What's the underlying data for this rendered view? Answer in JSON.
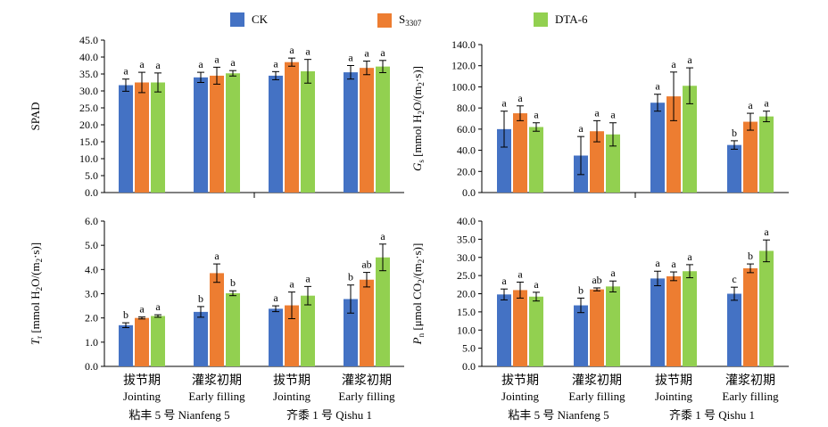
{
  "legend": [
    {
      "name": "CK",
      "color": "#4472C4"
    },
    {
      "name": "S3307",
      "color": "#ED7D31"
    },
    {
      "name": "DTA-6",
      "color": "#92D050"
    }
  ],
  "group_labels": [
    {
      "cn": "拔节期",
      "en": "Jointing"
    },
    {
      "cn": "灌浆初期",
      "en": "Early filling"
    },
    {
      "cn": "拔节期",
      "en": "Jointing"
    },
    {
      "cn": "灌浆初期",
      "en": "Early filling"
    }
  ],
  "varieties": [
    "粘丰 5 号 Nianfeng 5",
    "齐黍 1 号 Qishu 1"
  ],
  "chart_data": [
    {
      "type": "bar",
      "id": "spad",
      "ylabel": "SPAD",
      "ylim": [
        0,
        45
      ],
      "ytick_step": 5,
      "ytick_decimals": 1,
      "categories": [
        "Jointing",
        "Early filling",
        "Jointing",
        "Early filling"
      ],
      "series": [
        {
          "name": "CK",
          "values": [
            31.7,
            34.0,
            34.5,
            35.5
          ],
          "errors": [
            1.8,
            1.5,
            1.2,
            2.0
          ],
          "letters": [
            "a",
            "a",
            "a",
            "a"
          ]
        },
        {
          "name": "S3307",
          "values": [
            32.5,
            34.5,
            38.5,
            36.8
          ],
          "errors": [
            3.0,
            2.5,
            1.2,
            2.0
          ],
          "letters": [
            "a",
            "a",
            "a",
            "a"
          ]
        },
        {
          "name": "DTA-6",
          "values": [
            32.5,
            35.2,
            35.8,
            37.2
          ],
          "errors": [
            2.8,
            0.8,
            3.5,
            1.8
          ],
          "letters": [
            "a",
            "a",
            "a",
            "a"
          ]
        }
      ]
    },
    {
      "type": "bar",
      "id": "gs",
      "ylabel_parts": [
        "G",
        "s",
        " [mmol H",
        "2",
        "O/(m",
        "2",
        "·s)]"
      ],
      "ylim": [
        0,
        140
      ],
      "ytick_step": 20,
      "ytick_decimals": 1,
      "categories": [
        "Jointing",
        "Early filling",
        "Jointing",
        "Early filling"
      ],
      "series": [
        {
          "name": "CK",
          "values": [
            60,
            35,
            85,
            45
          ],
          "errors": [
            17,
            18,
            8,
            4
          ],
          "letters": [
            "a",
            "a",
            "a",
            "b"
          ]
        },
        {
          "name": "S3307",
          "values": [
            75,
            58,
            91,
            67
          ],
          "errors": [
            7,
            10,
            23,
            8
          ],
          "letters": [
            "a",
            "a",
            "a",
            "a"
          ]
        },
        {
          "name": "DTA-6",
          "values": [
            62,
            55,
            101,
            72
          ],
          "errors": [
            4,
            11,
            17,
            5
          ],
          "letters": [
            "a",
            "a",
            "a",
            "a"
          ]
        }
      ]
    },
    {
      "type": "bar",
      "id": "tr",
      "ylabel_parts": [
        "T",
        "r",
        " [mmol H",
        "2",
        "O/(m",
        "2",
        "·s)]"
      ],
      "ylim": [
        0,
        6
      ],
      "ytick_step": 1,
      "ytick_decimals": 1,
      "categories": [
        "Jointing",
        "Early filling",
        "Jointing",
        "Early filling"
      ],
      "series": [
        {
          "name": "CK",
          "values": [
            1.7,
            2.25,
            2.38,
            2.78
          ],
          "errors": [
            0.1,
            0.22,
            0.12,
            0.58
          ],
          "letters": [
            "b",
            "b",
            "a",
            "b"
          ]
        },
        {
          "name": "S3307",
          "values": [
            2.0,
            3.85,
            2.52,
            3.58
          ],
          "errors": [
            0.04,
            0.38,
            0.55,
            0.3
          ],
          "letters": [
            "a",
            "a",
            "a",
            "ab"
          ]
        },
        {
          "name": "DTA-6",
          "values": [
            2.08,
            3.02,
            2.92,
            4.5
          ],
          "errors": [
            0.05,
            0.1,
            0.38,
            0.55
          ],
          "letters": [
            "a",
            "b",
            "a",
            "a"
          ]
        }
      ]
    },
    {
      "type": "bar",
      "id": "pn",
      "ylabel_parts": [
        "P",
        "n",
        " [μmol CO",
        "2",
        "/(m",
        "2",
        "·s)]"
      ],
      "ylim": [
        0,
        40
      ],
      "ytick_step": 5,
      "ytick_decimals": 1,
      "categories": [
        "Jointing",
        "Early filling",
        "Jointing",
        "Early filling"
      ],
      "series": [
        {
          "name": "CK",
          "values": [
            19.8,
            16.8,
            24.2,
            20.0
          ],
          "errors": [
            1.5,
            2.0,
            2.0,
            1.8
          ],
          "letters": [
            "a",
            "b",
            "a",
            "c"
          ]
        },
        {
          "name": "S3307",
          "values": [
            21.0,
            21.2,
            24.8,
            27.0
          ],
          "errors": [
            2.2,
            0.4,
            1.2,
            1.2
          ],
          "letters": [
            "a",
            "ab",
            "a",
            "b"
          ]
        },
        {
          "name": "DTA-6",
          "values": [
            19.2,
            22.0,
            26.2,
            31.8
          ],
          "errors": [
            1.2,
            1.5,
            1.8,
            3.0
          ],
          "letters": [
            "a",
            "a",
            "a",
            "a"
          ]
        }
      ]
    }
  ]
}
